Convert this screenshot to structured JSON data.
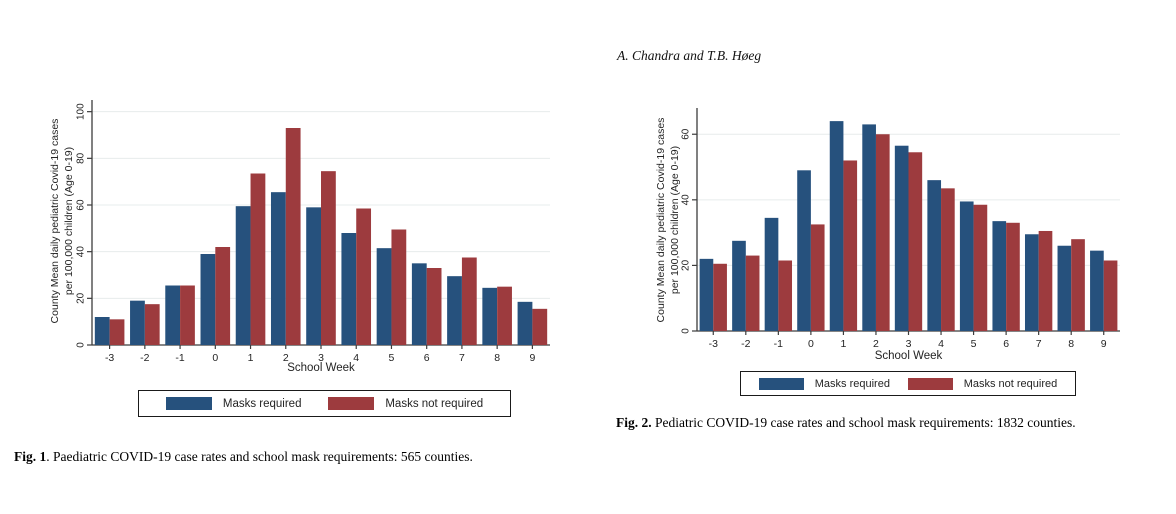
{
  "page": {
    "header_right": "A. Chandra and T.B. Høeg",
    "background": "#ffffff"
  },
  "figures": [
    {
      "caption_bold": "Fig. 1",
      "caption_rest": ". Paediatric COVID-19 case rates and school mask requirements: 565 counties."
    },
    {
      "caption_bold": "Fig. 2.",
      "caption_rest": " Pediatric COVID-19 case rates and school mask requirements: 1832 counties."
    }
  ],
  "chart_data": [
    {
      "type": "bar",
      "title": "",
      "xlabel": "School Week",
      "ylabel": "County Mean daily pediatric Covid-19 cases per 100,000 children (Age 0-19)",
      "ylabel_lines": [
        "County Mean daily pediatric Covid-19 cases",
        "per 100,000 children (Age 0-19)"
      ],
      "categories": [
        "-3",
        "-2",
        "-1",
        "0",
        "1",
        "2",
        "3",
        "4",
        "5",
        "6",
        "7",
        "8",
        "9"
      ],
      "series": [
        {
          "name": "Masks required",
          "color": "#26517d",
          "values": [
            12,
            19,
            25.5,
            39,
            59.5,
            65.5,
            59,
            48,
            41.5,
            35,
            29.5,
            24.5,
            18.5
          ]
        },
        {
          "name": "Masks not required",
          "color": "#9d3b3e",
          "values": [
            11,
            17.5,
            25.5,
            42,
            73.5,
            93,
            74.5,
            58.5,
            49.5,
            33,
            37.5,
            25,
            15.5
          ]
        }
      ],
      "ylim": [
        0,
        105
      ],
      "yticks": [
        0,
        20,
        40,
        60,
        80,
        100
      ],
      "grid": true,
      "legend_position": "bottom"
    },
    {
      "type": "bar",
      "title": "",
      "xlabel": "School Week",
      "ylabel": "County Mean daily pediatric Covid-19 cases per 100,000 children (Age 0-19)",
      "ylabel_lines": [
        "County Mean daily pediatric Covid-19 cases",
        "per 100,000 children (Age 0-19)"
      ],
      "categories": [
        "-3",
        "-2",
        "-1",
        "0",
        "1",
        "2",
        "3",
        "4",
        "5",
        "6",
        "7",
        "8",
        "9"
      ],
      "series": [
        {
          "name": "Masks required",
          "color": "#26517d",
          "values": [
            22,
            27.5,
            34.5,
            49,
            64,
            63,
            56.5,
            46,
            39.5,
            33.5,
            29.5,
            26,
            24.5
          ]
        },
        {
          "name": "Masks not required",
          "color": "#9d3b3e",
          "values": [
            20.5,
            23,
            21.5,
            32.5,
            52,
            60,
            54.5,
            43.5,
            38.5,
            33,
            30.5,
            28,
            21.5
          ]
        }
      ],
      "ylim": [
        0,
        68
      ],
      "yticks": [
        0,
        20,
        40,
        60
      ],
      "grid": true,
      "legend_position": "bottom"
    }
  ],
  "style": {
    "axis_color": "#3c3c3c",
    "grid_color": "#e7ecec",
    "tick_label_color": "#242424"
  }
}
